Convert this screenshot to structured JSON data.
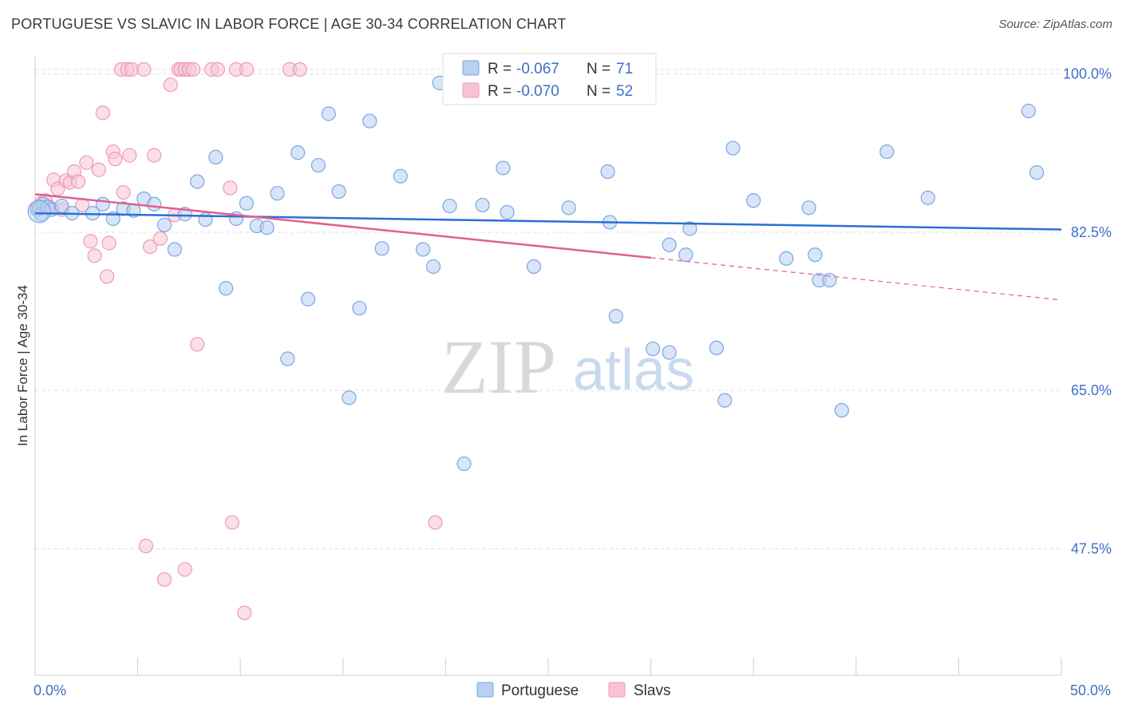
{
  "title": "PORTUGUESE VS SLAVIC IN LABOR FORCE | AGE 30-34 CORRELATION CHART",
  "source": "Source: ZipAtlas.com",
  "watermark": {
    "zip": "ZIP",
    "atlas": "atlas"
  },
  "colors": {
    "portuguese_fill": "#b8d0f2",
    "portuguese_stroke": "#7aa6e0",
    "portuguese_line": "#2a6fd6",
    "slavs_fill": "#f8c4d4",
    "slavs_stroke": "#ee9ab6",
    "slavs_line": "#e0608e",
    "tick_label": "#3f6fc7",
    "grid": "#dddddd"
  },
  "legend": {
    "rows": [
      {
        "r_label": "R =",
        "r_value": "-0.067",
        "n_label": "N =",
        "n_value": "71"
      },
      {
        "r_label": "R =",
        "r_value": "-0.070",
        "n_label": "N =",
        "n_value": "52"
      }
    ]
  },
  "bottom_legend": [
    "Portuguese",
    "Slavs"
  ],
  "chart_data": {
    "type": "scatter",
    "title": "PORTUGUESE VS SLAVIC IN LABOR FORCE | AGE 30-34 CORRELATION CHART",
    "xlabel": "",
    "ylabel": "In Labor Force | Age 30-34",
    "xlim": [
      0,
      50
    ],
    "ylim": [
      33.5,
      102
    ],
    "x_tick_labels": [
      {
        "value": 0,
        "label": "0.0%"
      },
      {
        "value": 50,
        "label": "50.0%"
      }
    ],
    "y_tick_labels": [
      {
        "value": 100,
        "label": "100.0%"
      },
      {
        "value": 82.5,
        "label": "82.5%"
      },
      {
        "value": 65,
        "label": "65.0%"
      },
      {
        "value": 47.5,
        "label": "47.5%"
      }
    ],
    "series": [
      {
        "name": "Portuguese",
        "r": -0.067,
        "n": 71,
        "trend": {
          "x": [
            0,
            50
          ],
          "y": [
            84.6,
            82.8
          ],
          "dashed_from": null
        },
        "points": [
          [
            0.1,
            85.0
          ],
          [
            0.2,
            85.2
          ],
          [
            0.3,
            84.5
          ],
          [
            0.4,
            85.6
          ],
          [
            0.6,
            85.3
          ],
          [
            0.8,
            85.0
          ],
          [
            1.3,
            85.4
          ],
          [
            1.8,
            84.6
          ],
          [
            2.8,
            84.6
          ],
          [
            3.3,
            85.6
          ],
          [
            3.8,
            84.0
          ],
          [
            4.3,
            85.1
          ],
          [
            4.8,
            84.9
          ],
          [
            5.3,
            86.2
          ],
          [
            5.8,
            85.6
          ],
          [
            6.3,
            83.3
          ],
          [
            6.8,
            80.6
          ],
          [
            7.3,
            84.5
          ],
          [
            7.9,
            88.1
          ],
          [
            8.3,
            83.9
          ],
          [
            8.8,
            90.8
          ],
          [
            9.3,
            76.3
          ],
          [
            9.8,
            84.0
          ],
          [
            10.3,
            85.7
          ],
          [
            10.8,
            83.2
          ],
          [
            11.3,
            83.0
          ],
          [
            11.8,
            86.8
          ],
          [
            12.3,
            68.5
          ],
          [
            12.8,
            91.3
          ],
          [
            13.3,
            75.1
          ],
          [
            13.8,
            89.9
          ],
          [
            14.3,
            95.6
          ],
          [
            14.8,
            87.0
          ],
          [
            15.3,
            64.2
          ],
          [
            15.8,
            74.1
          ],
          [
            16.3,
            94.8
          ],
          [
            16.9,
            80.7
          ],
          [
            17.8,
            88.7
          ],
          [
            18.9,
            80.6
          ],
          [
            19.4,
            78.7
          ],
          [
            19.7,
            99.0
          ],
          [
            20.2,
            85.4
          ],
          [
            20.9,
            56.9
          ],
          [
            21.8,
            85.5
          ],
          [
            22.8,
            89.6
          ],
          [
            23.0,
            84.7
          ],
          [
            24.3,
            78.7
          ],
          [
            26.0,
            85.2
          ],
          [
            26.7,
            100.5
          ],
          [
            28.3,
            73.2
          ],
          [
            27.9,
            89.2
          ],
          [
            28.0,
            83.6
          ],
          [
            30.1,
            69.6
          ],
          [
            30.9,
            81.1
          ],
          [
            30.9,
            69.2
          ],
          [
            31.7,
            80.0
          ],
          [
            31.9,
            82.9
          ],
          [
            33.2,
            69.7
          ],
          [
            33.6,
            63.9
          ],
          [
            34.0,
            91.8
          ],
          [
            35.0,
            86.0
          ],
          [
            36.6,
            79.6
          ],
          [
            37.7,
            85.2
          ],
          [
            38.0,
            80.0
          ],
          [
            38.2,
            77.2
          ],
          [
            38.7,
            77.2
          ],
          [
            39.3,
            62.8
          ],
          [
            41.5,
            91.4
          ],
          [
            43.5,
            86.3
          ],
          [
            48.4,
            95.9
          ],
          [
            48.8,
            89.1
          ]
        ]
      },
      {
        "name": "Slavs",
        "r": -0.07,
        "n": 52,
        "trend": {
          "x": [
            0,
            50
          ],
          "y": [
            86.7,
            75.0
          ],
          "dashed_from": 30.0
        },
        "points": [
          [
            0.1,
            85.2
          ],
          [
            0.3,
            85.7
          ],
          [
            0.5,
            86.0
          ],
          [
            0.7,
            85.3
          ],
          [
            0.9,
            88.3
          ],
          [
            1.1,
            87.3
          ],
          [
            1.3,
            85.0
          ],
          [
            1.5,
            88.2
          ],
          [
            1.7,
            88.0
          ],
          [
            1.9,
            89.2
          ],
          [
            2.1,
            88.1
          ],
          [
            2.3,
            85.5
          ],
          [
            2.5,
            90.2
          ],
          [
            2.7,
            81.5
          ],
          [
            2.9,
            79.9
          ],
          [
            3.1,
            89.4
          ],
          [
            3.3,
            95.7
          ],
          [
            3.5,
            77.6
          ],
          [
            3.6,
            81.3
          ],
          [
            3.8,
            91.4
          ],
          [
            3.9,
            90.6
          ],
          [
            4.3,
            86.9
          ],
          [
            4.6,
            91.0
          ],
          [
            4.2,
            100.5
          ],
          [
            4.5,
            100.5
          ],
          [
            4.7,
            100.5
          ],
          [
            5.3,
            100.5
          ],
          [
            5.4,
            47.8
          ],
          [
            5.6,
            80.9
          ],
          [
            5.8,
            91.0
          ],
          [
            6.1,
            81.8
          ],
          [
            6.3,
            44.1
          ],
          [
            6.6,
            98.8
          ],
          [
            6.8,
            84.4
          ],
          [
            7.0,
            100.5
          ],
          [
            7.1,
            100.5
          ],
          [
            7.3,
            100.5
          ],
          [
            7.5,
            100.5
          ],
          [
            7.7,
            100.5
          ],
          [
            7.9,
            70.1
          ],
          [
            7.3,
            45.2
          ],
          [
            8.6,
            100.5
          ],
          [
            8.9,
            100.5
          ],
          [
            9.5,
            87.4
          ],
          [
            9.8,
            100.5
          ],
          [
            10.3,
            100.5
          ],
          [
            9.6,
            50.4
          ],
          [
            10.2,
            40.4
          ],
          [
            12.4,
            100.5
          ],
          [
            12.9,
            100.5
          ],
          [
            19.5,
            50.4
          ],
          [
            28.9,
            100.5
          ]
        ]
      }
    ]
  }
}
